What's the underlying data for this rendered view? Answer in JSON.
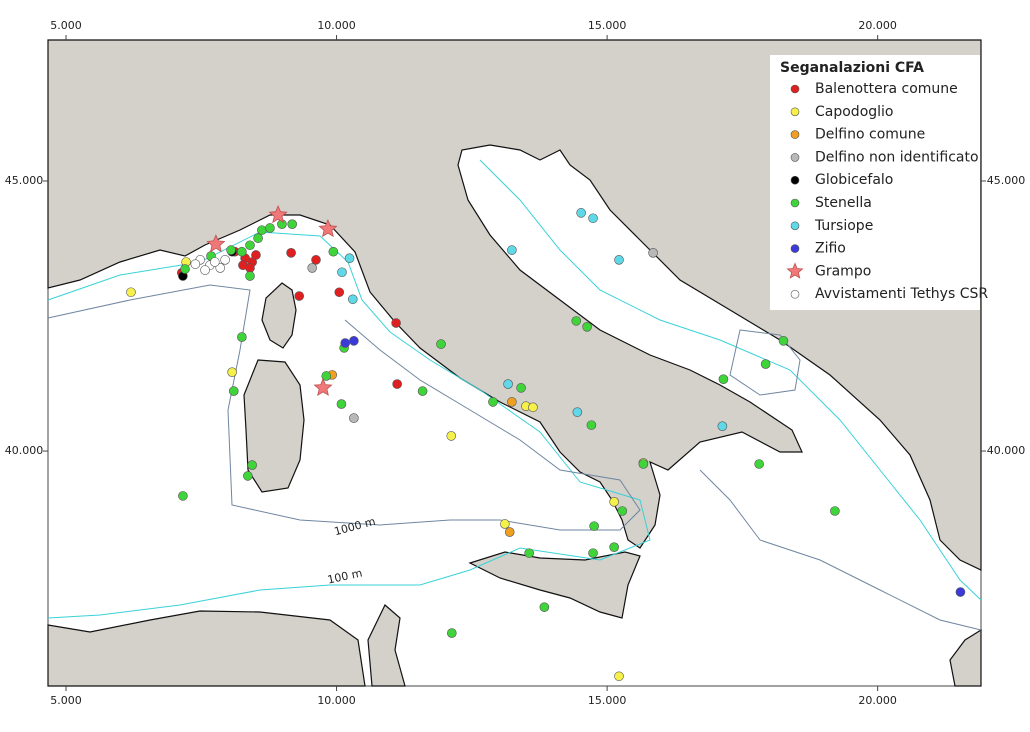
{
  "chart_data": {
    "type": "scatter",
    "xlim": [
      4.667,
      21.91
    ],
    "ylim": [
      35.65,
      47.61
    ],
    "xticks": [
      {
        "value": 5,
        "label": "5.000"
      },
      {
        "value": 10,
        "label": "10.000"
      },
      {
        "value": 15,
        "label": "15.000"
      },
      {
        "value": 20,
        "label": "20.000"
      }
    ],
    "yticks": [
      {
        "value": 40,
        "label": "40.000"
      },
      {
        "value": 45,
        "label": "45.000"
      }
    ],
    "legend_title": "Seganalazioni CFA",
    "legend_position": "upper right",
    "annotations": [
      "1000 m",
      "100 m"
    ],
    "series": [
      {
        "name": "Balenottera comune",
        "color": "#e02020",
        "marker": "circle",
        "x": [
          7.14,
          8.12,
          8.31,
          8.44,
          8.51,
          9.16,
          9.62,
          9.31,
          10.05,
          11.1,
          11.12,
          8.27,
          8.4
        ],
        "values": [
          43.3,
          43.69,
          43.57,
          43.5,
          43.63,
          43.67,
          43.54,
          42.87,
          42.94,
          42.37,
          41.24,
          43.44,
          43.39
        ]
      },
      {
        "name": "Capodoglio",
        "color": "#f5f04a",
        "marker": "circle",
        "x": [
          6.2,
          7.22,
          8.07,
          12.12,
          13.5,
          13.63,
          15.67,
          15.13,
          13.11,
          15.22
        ],
        "values": [
          42.94,
          43.5,
          41.46,
          40.28,
          40.83,
          40.81,
          39.78,
          39.06,
          38.65,
          35.83
        ]
      },
      {
        "name": "Delfino comune",
        "color": "#f0a020",
        "marker": "circle",
        "x": [
          13.24,
          13.2,
          9.92
        ],
        "values": [
          40.91,
          38.5,
          41.41
        ]
      },
      {
        "name": "Delfino non identificato",
        "color": "#b8b8b8",
        "marker": "circle",
        "x": [
          10.32,
          9.55,
          15.85
        ],
        "values": [
          40.61,
          43.39,
          43.67
        ]
      },
      {
        "name": "Globicefalo",
        "color": "#000000",
        "marker": "circle",
        "x": [
          7.16,
          8.07
        ],
        "values": [
          43.24,
          43.69
        ]
      },
      {
        "name": "Stenella",
        "color": "#3fd43a",
        "marker": "circle",
        "x": [
          7.2,
          7.68,
          8.25,
          8.4,
          8.55,
          8.62,
          8.77,
          8.99,
          9.18,
          8.4,
          8.25,
          8.1,
          8.44,
          8.36,
          7.16,
          10.14,
          10.09,
          9.81,
          9.94,
          11.93,
          11.59,
          12.89,
          13.41,
          14.43,
          14.63,
          14.71,
          15.67,
          17.15,
          17.93,
          18.26,
          17.81,
          19.21,
          14.76,
          15.28,
          15.13,
          14.74,
          13.56,
          13.84,
          12.13,
          8.05
        ],
        "values": [
          43.37,
          43.61,
          43.69,
          43.81,
          43.94,
          44.09,
          44.13,
          44.2,
          44.2,
          43.24,
          42.11,
          41.11,
          39.74,
          39.54,
          39.17,
          41.91,
          40.87,
          41.39,
          43.69,
          41.98,
          41.11,
          40.91,
          41.17,
          42.41,
          42.3,
          40.48,
          39.76,
          41.33,
          41.61,
          42.04,
          39.76,
          38.89,
          38.61,
          38.89,
          38.22,
          38.11,
          38.11,
          37.11,
          36.63,
          43.72
        ]
      },
      {
        "name": "Tursiope",
        "color": "#5fd8e8",
        "marker": "circle",
        "x": [
          14.52,
          14.74,
          13.24,
          15.22,
          10.1,
          10.24,
          13.17,
          14.45,
          17.13,
          10.3
        ],
        "values": [
          44.41,
          44.31,
          43.72,
          43.54,
          43.31,
          43.57,
          41.24,
          40.72,
          40.46,
          42.81
        ]
      },
      {
        "name": "Zifio",
        "color": "#3a3ad8",
        "marker": "circle",
        "x": [
          10.16,
          10.32,
          21.53
        ],
        "values": [
          42.0,
          42.04,
          37.39
        ]
      },
      {
        "name": "Grampo",
        "color": "#f07878",
        "marker": "star",
        "x": [
          7.77,
          8.92,
          9.84,
          9.75
        ],
        "values": [
          43.83,
          44.37,
          44.11,
          41.17
        ]
      },
      {
        "name": "Avvistamenti Tethys CSR",
        "color": "#ffffff",
        "marker": "circle",
        "x": [
          7.48,
          7.66,
          7.85,
          7.57,
          7.75,
          7.94,
          7.39
        ],
        "values": [
          43.54,
          43.44,
          43.39,
          43.35,
          43.5,
          43.54,
          43.46
        ]
      }
    ]
  }
}
